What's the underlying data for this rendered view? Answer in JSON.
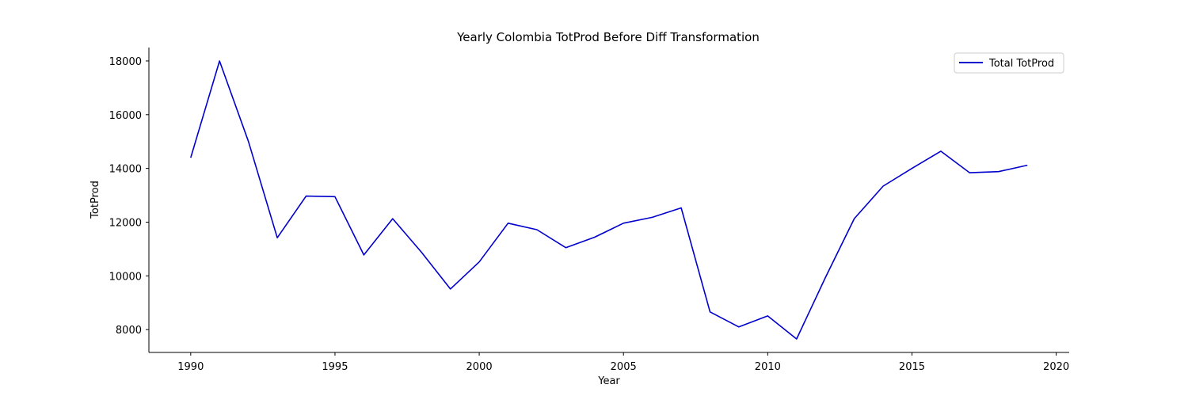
{
  "chart_data": {
    "type": "line",
    "title": "Yearly Colombia TotProd Before Diff Transformation",
    "xlabel": "Year",
    "ylabel": "TotProd",
    "xlim": [
      1988.55,
      2020.45
    ],
    "ylim": [
      7150,
      18500
    ],
    "xticks": [
      1990,
      1995,
      2000,
      2005,
      2010,
      2015,
      2020
    ],
    "yticks": [
      8000,
      10000,
      12000,
      14000,
      16000,
      18000
    ],
    "grid": false,
    "legend_position": "top-right",
    "series": [
      {
        "name": "Total TotProd",
        "color": "#0000cc",
        "x": [
          1990,
          1991,
          1992,
          1993,
          1994,
          1995,
          1996,
          1997,
          1998,
          1999,
          2000,
          2001,
          2002,
          2003,
          2004,
          2005,
          2006,
          2007,
          2008,
          2009,
          2010,
          2011,
          2012,
          2013,
          2014,
          2015,
          2016,
          2017,
          2018,
          2019
        ],
        "y": [
          14400,
          18000,
          15000,
          11420,
          12970,
          12950,
          10780,
          12130,
          10880,
          9510,
          10520,
          11960,
          11720,
          11050,
          11440,
          11960,
          12180,
          12530,
          8660,
          8100,
          8510,
          7650,
          9940,
          12130,
          13340,
          14000,
          14640,
          13840,
          13880,
          14120
        ]
      }
    ]
  }
}
